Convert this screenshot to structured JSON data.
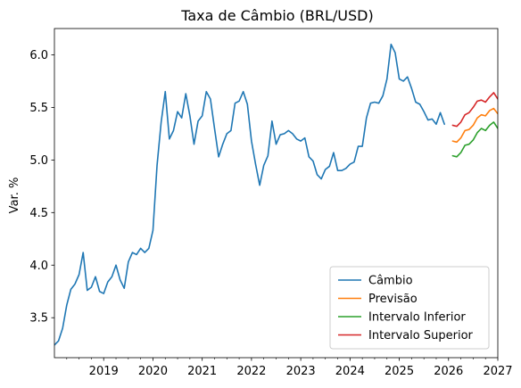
{
  "chart_data": {
    "type": "line",
    "title": "Taxa de Câmbio (BRL/USD)",
    "xlabel": "",
    "ylabel": "Var. %",
    "xlim": [
      "2018-01",
      "2027-01"
    ],
    "ylim": [
      3.12,
      6.25
    ],
    "xticks": [
      "2019",
      "2020",
      "2021",
      "2022",
      "2023",
      "2024",
      "2025",
      "2026",
      "2027"
    ],
    "yticks": [
      "3.5",
      "4.0",
      "4.5",
      "5.0",
      "5.5",
      "6.0"
    ],
    "grid": false,
    "legend_position": "lower-right",
    "series": [
      {
        "name": "Câmbio",
        "color": "#1f77b4",
        "x": [
          "2018-01",
          "2018-02",
          "2018-03",
          "2018-04",
          "2018-05",
          "2018-06",
          "2018-07",
          "2018-08",
          "2018-09",
          "2018-10",
          "2018-11",
          "2018-12",
          "2019-01",
          "2019-02",
          "2019-03",
          "2019-04",
          "2019-05",
          "2019-06",
          "2019-07",
          "2019-08",
          "2019-09",
          "2019-10",
          "2019-11",
          "2019-12",
          "2020-01",
          "2020-02",
          "2020-03",
          "2020-04",
          "2020-05",
          "2020-06",
          "2020-07",
          "2020-08",
          "2020-09",
          "2020-10",
          "2020-11",
          "2020-12",
          "2021-01",
          "2021-02",
          "2021-03",
          "2021-04",
          "2021-05",
          "2021-06",
          "2021-07",
          "2021-08",
          "2021-09",
          "2021-10",
          "2021-11",
          "2021-12",
          "2022-01",
          "2022-02",
          "2022-03",
          "2022-04",
          "2022-05",
          "2022-06",
          "2022-07",
          "2022-08",
          "2022-09",
          "2022-10",
          "2022-11",
          "2022-12",
          "2023-01",
          "2023-02",
          "2023-03",
          "2023-04",
          "2023-05",
          "2023-06",
          "2023-07",
          "2023-08",
          "2023-09",
          "2023-10",
          "2023-11",
          "2023-12",
          "2024-01",
          "2024-02",
          "2024-03",
          "2024-04",
          "2024-05",
          "2024-06",
          "2024-07",
          "2024-08",
          "2024-09",
          "2024-10",
          "2024-11",
          "2024-12",
          "2025-01",
          "2025-02",
          "2025-03",
          "2025-04",
          "2025-05",
          "2025-06",
          "2025-07",
          "2025-08",
          "2025-09",
          "2025-10",
          "2025-11",
          "2025-12",
          "2026-01"
        ],
        "y": [
          3.24,
          3.28,
          3.4,
          3.62,
          3.77,
          3.82,
          3.91,
          4.12,
          3.76,
          3.79,
          3.89,
          3.75,
          3.73,
          3.84,
          3.89,
          4.0,
          3.86,
          3.78,
          4.03,
          4.12,
          4.1,
          4.16,
          4.12,
          4.16,
          4.33,
          4.95,
          5.36,
          5.65,
          5.2,
          5.28,
          5.46,
          5.4,
          5.63,
          5.42,
          5.15,
          5.37,
          5.42,
          5.65,
          5.58,
          5.3,
          5.03,
          5.15,
          5.25,
          5.28,
          5.54,
          5.56,
          5.65,
          5.53,
          5.18,
          4.96,
          4.76,
          4.95,
          5.04,
          5.37,
          5.15,
          5.24,
          5.25,
          5.28,
          5.25,
          5.2,
          5.18,
          5.21,
          5.03,
          4.99,
          4.86,
          4.82,
          4.91,
          4.94,
          5.07,
          4.9,
          4.9,
          4.92,
          4.96,
          4.98,
          5.13,
          5.13,
          5.4,
          5.54,
          5.55,
          5.54,
          5.61,
          5.77,
          6.1,
          6.02,
          5.77,
          5.75,
          5.79,
          5.68,
          5.55,
          5.53,
          5.46,
          5.38,
          5.39,
          5.34,
          5.45,
          5.34,
          null
        ]
      },
      {
        "name": "Previsão",
        "color": "#ff7f0e",
        "x": [
          "2026-02",
          "2026-03",
          "2026-04",
          "2026-05",
          "2026-06",
          "2026-07",
          "2026-08",
          "2026-09",
          "2026-10",
          "2026-11",
          "2026-12",
          "2027-01"
        ],
        "y": [
          5.18,
          5.17,
          5.21,
          5.28,
          5.29,
          5.33,
          5.4,
          5.43,
          5.42,
          5.47,
          5.49,
          5.44
        ]
      },
      {
        "name": "Intervalo Inferior",
        "color": "#2ca02c",
        "x": [
          "2026-02",
          "2026-03",
          "2026-04",
          "2026-05",
          "2026-06",
          "2026-07",
          "2026-08",
          "2026-09",
          "2026-10",
          "2026-11",
          "2026-12",
          "2027-01"
        ],
        "y": [
          5.04,
          5.03,
          5.07,
          5.14,
          5.15,
          5.19,
          5.26,
          5.3,
          5.28,
          5.33,
          5.36,
          5.3
        ]
      },
      {
        "name": "Intervalo Superior",
        "color": "#d62728",
        "x": [
          "2026-02",
          "2026-03",
          "2026-04",
          "2026-05",
          "2026-06",
          "2026-07",
          "2026-08",
          "2026-09",
          "2026-10",
          "2026-11",
          "2026-12",
          "2027-01"
        ],
        "y": [
          5.33,
          5.32,
          5.36,
          5.43,
          5.45,
          5.5,
          5.56,
          5.57,
          5.55,
          5.6,
          5.64,
          5.58
        ]
      }
    ]
  }
}
